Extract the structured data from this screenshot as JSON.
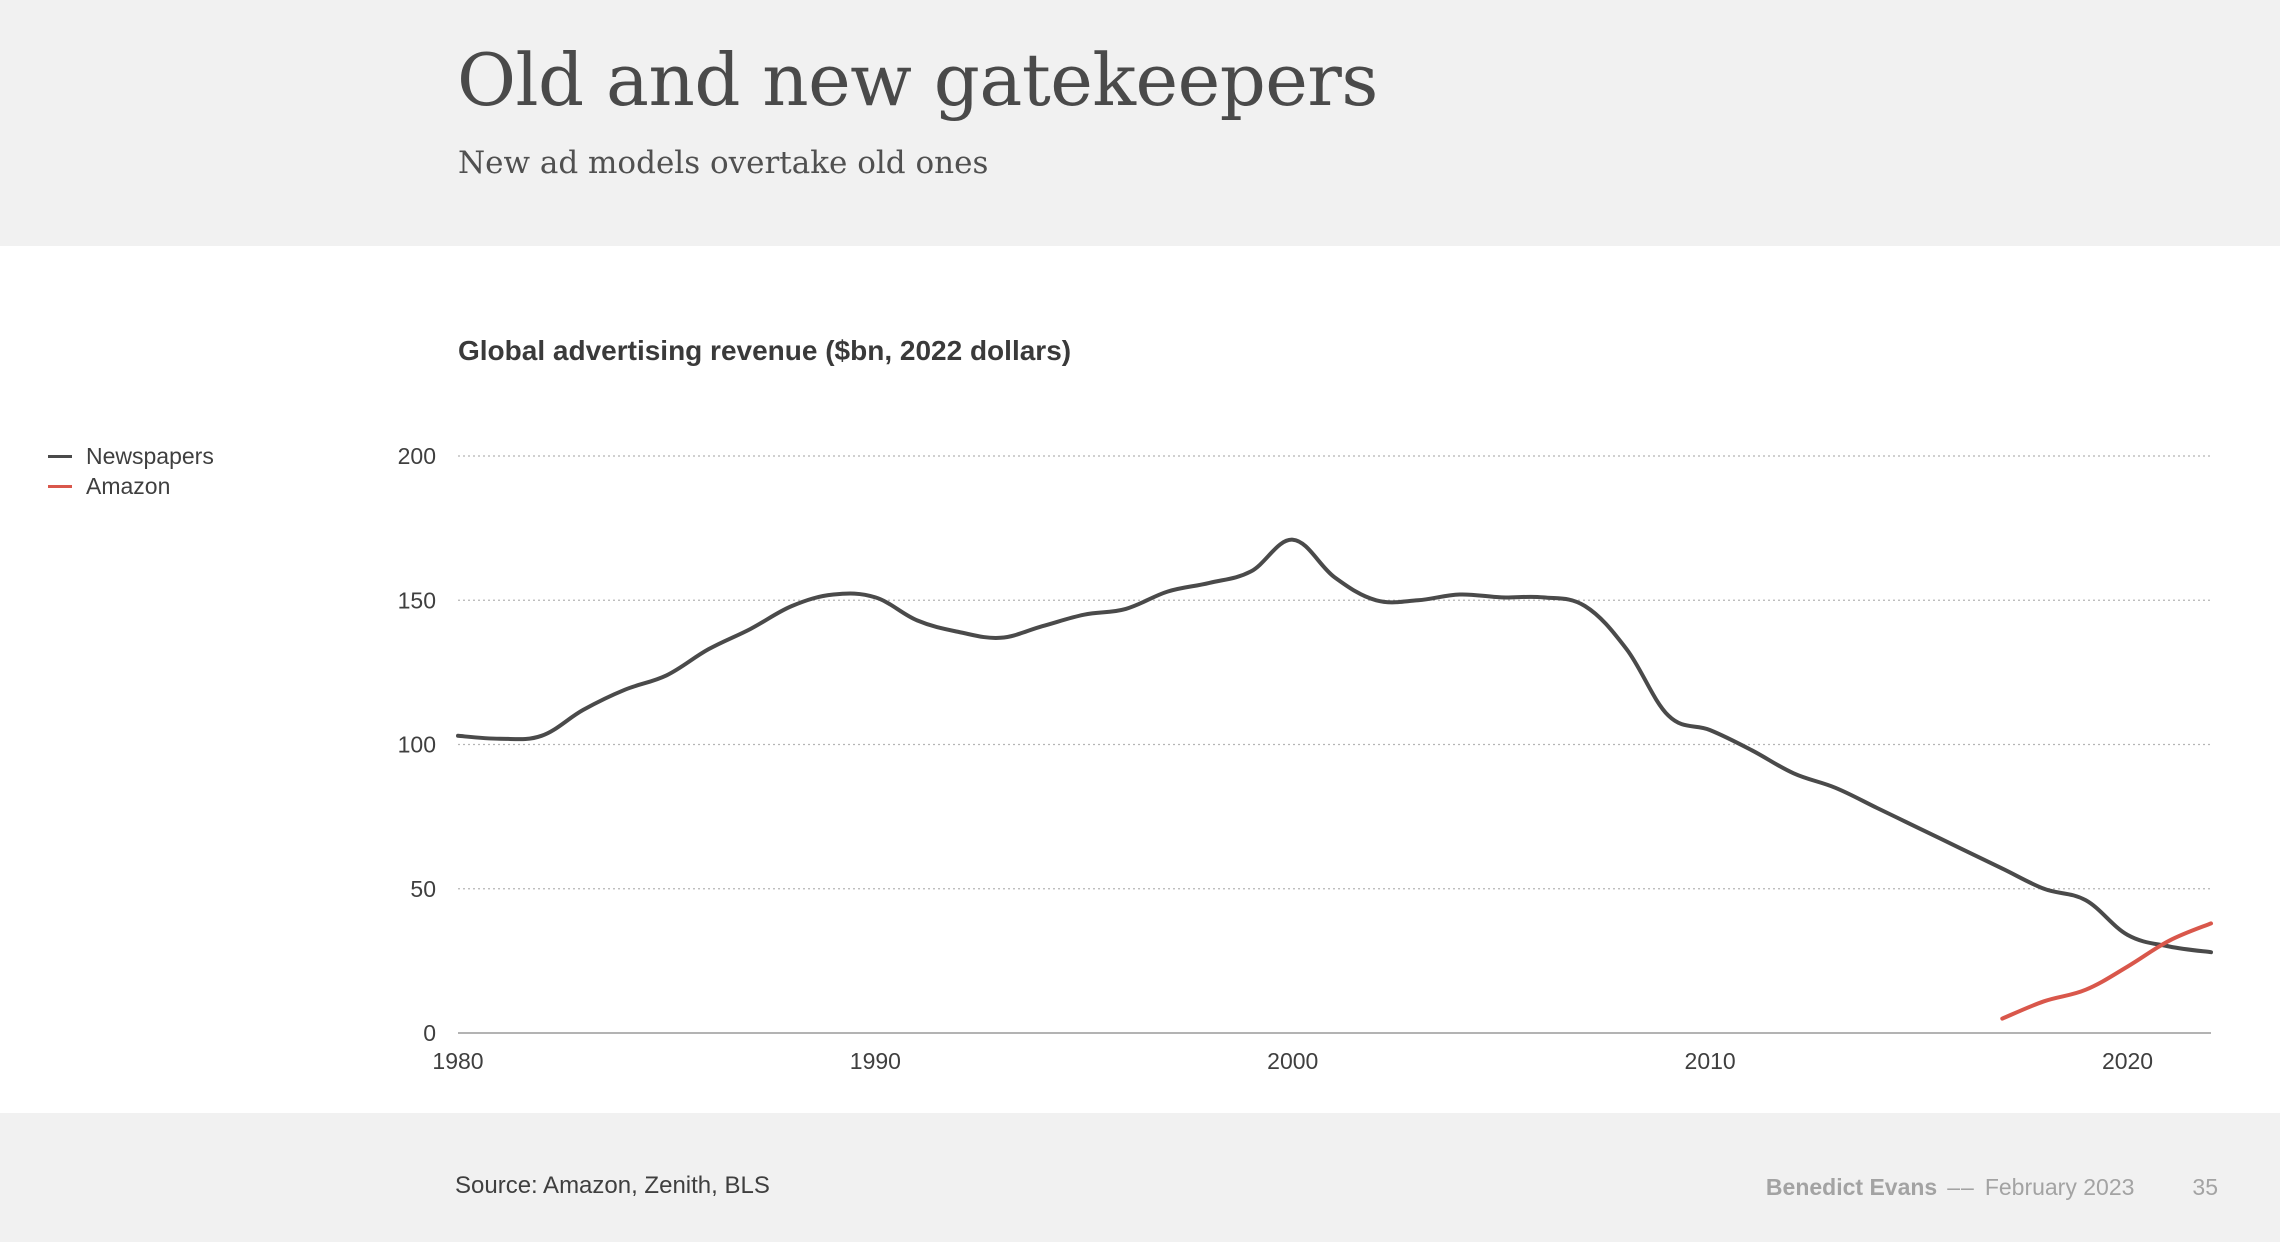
{
  "slide": {
    "title": "Old and new gatekeepers",
    "subtitle": "New ad models overtake old ones"
  },
  "footer": {
    "source": "Source: Amazon, Zenith, BLS",
    "author": "Benedict Evans",
    "separator": "––",
    "date": "February 2023",
    "page": "35"
  },
  "chart_data": {
    "type": "line",
    "title": "Global advertising revenue ($bn, 2022 dollars)",
    "xlabel": "",
    "ylabel": "",
    "xlim": [
      1980,
      2022
    ],
    "ylim": [
      0,
      200
    ],
    "xticks": [
      1980,
      1990,
      2000,
      2010,
      2020
    ],
    "yticks": [
      0,
      50,
      100,
      150,
      200
    ],
    "grid": true,
    "legend_position": "left",
    "series": [
      {
        "name": "Newspapers",
        "color": "#4a4a4a",
        "x": [
          1980,
          1981,
          1982,
          1983,
          1984,
          1985,
          1986,
          1987,
          1988,
          1989,
          1990,
          1991,
          1992,
          1993,
          1994,
          1995,
          1996,
          1997,
          1998,
          1999,
          2000,
          2001,
          2002,
          2003,
          2004,
          2005,
          2006,
          2007,
          2008,
          2009,
          2010,
          2011,
          2012,
          2013,
          2014,
          2015,
          2016,
          2017,
          2018,
          2019,
          2020,
          2021,
          2022
        ],
        "values": [
          103,
          102,
          103,
          112,
          119,
          124,
          133,
          140,
          148,
          152,
          151,
          143,
          139,
          137,
          141,
          145,
          147,
          153,
          156,
          160,
          171,
          158,
          150,
          150,
          152,
          151,
          151,
          148,
          133,
          110,
          105,
          98,
          90,
          85,
          78,
          71,
          64,
          57,
          50,
          46,
          34,
          30,
          28
        ]
      },
      {
        "name": "Amazon",
        "color": "#d9574b",
        "x": [
          2017,
          2018,
          2019,
          2020,
          2021,
          2022
        ],
        "values": [
          5,
          11,
          15,
          23,
          32,
          38
        ]
      }
    ]
  }
}
